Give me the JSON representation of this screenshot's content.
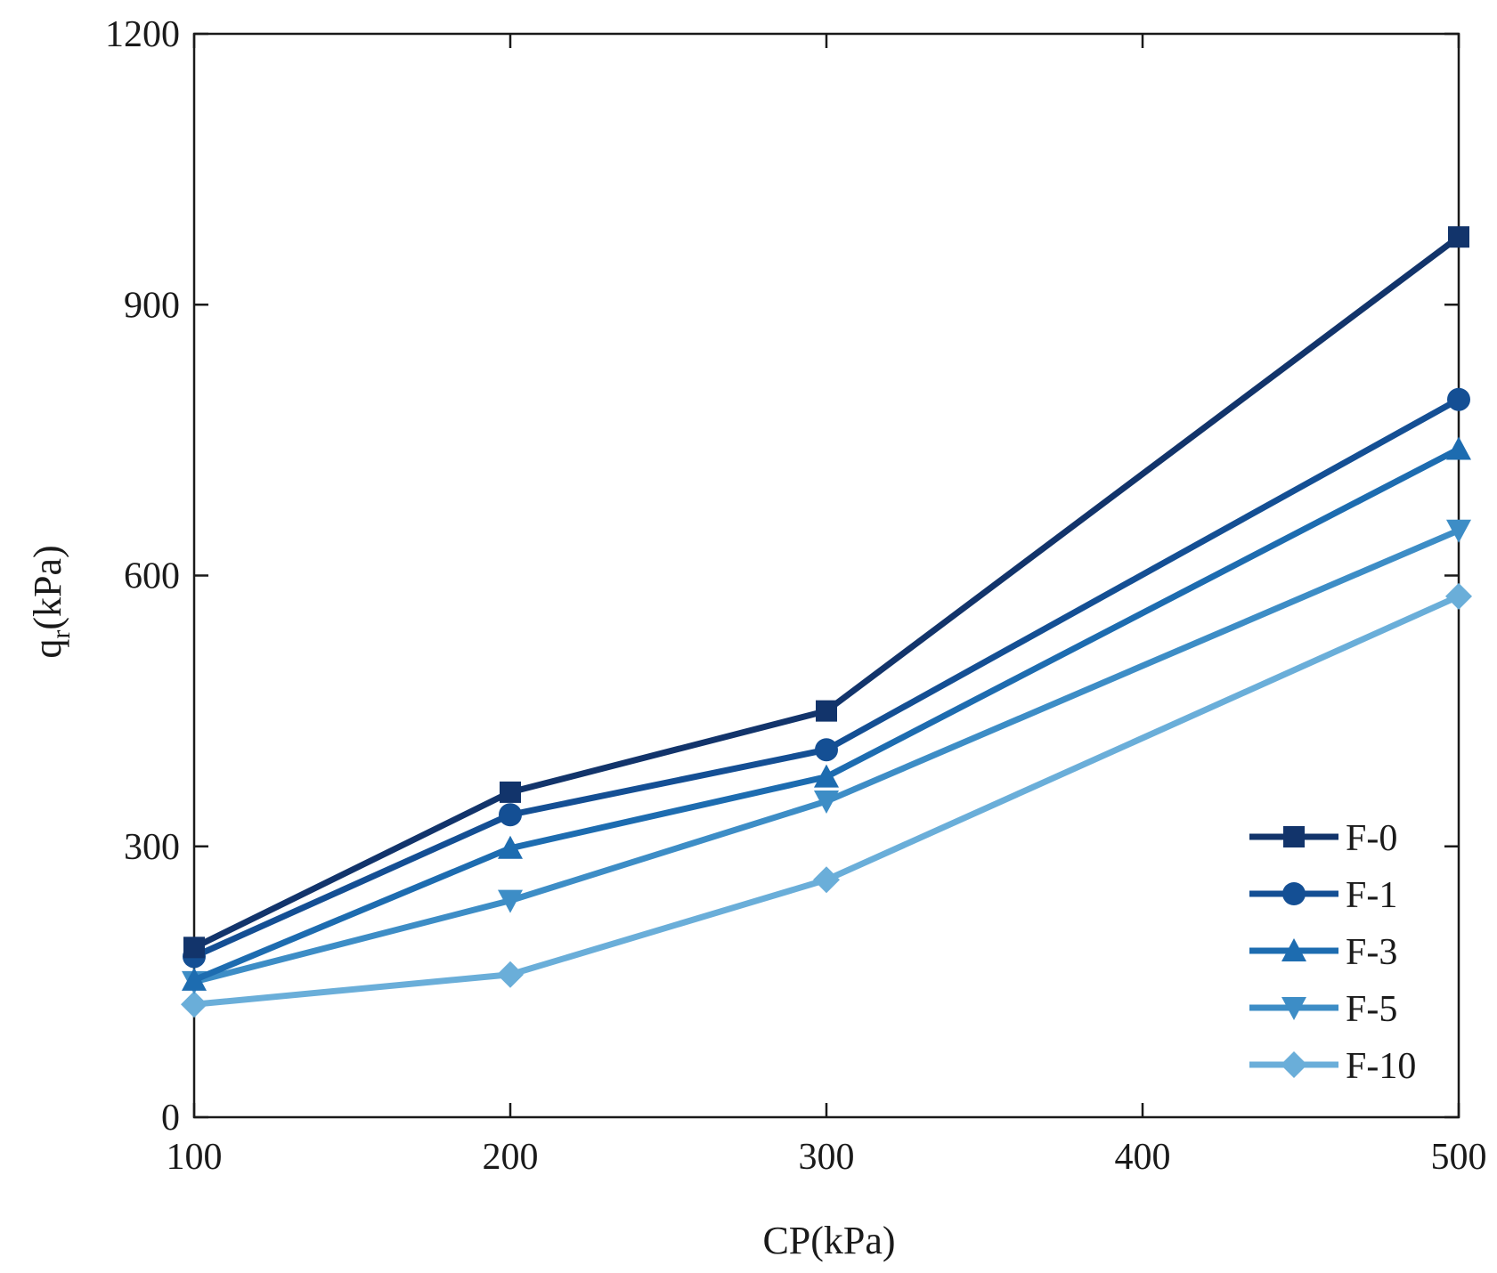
{
  "chart_data": {
    "type": "line",
    "title": "",
    "xlabel": "CP(kPa)",
    "ylabel": {
      "main": "q",
      "sub": "r",
      "unit": "(kPa)"
    },
    "x": [
      100,
      200,
      300,
      500
    ],
    "xlim": [
      100,
      500
    ],
    "ylim": [
      0,
      1200
    ],
    "xticks": [
      100,
      200,
      300,
      400,
      500
    ],
    "yticks": [
      0,
      300,
      600,
      900,
      1200
    ],
    "grid": false,
    "legend_position": "bottom-right",
    "series": [
      {
        "name": "F-0",
        "marker": "square",
        "color": "#12346b",
        "values": [
          188,
          360,
          450,
          975
        ]
      },
      {
        "name": "F-1",
        "marker": "circle",
        "color": "#144f94",
        "values": [
          178,
          335,
          407,
          795
        ]
      },
      {
        "name": "F-3",
        "marker": "triangle-up",
        "color": "#1d6cb0",
        "values": [
          152,
          298,
          377,
          740
        ]
      },
      {
        "name": "F-5",
        "marker": "triangle-down",
        "color": "#3d8dc6",
        "values": [
          150,
          240,
          350,
          650
        ]
      },
      {
        "name": "F-10",
        "marker": "diamond",
        "color": "#6aaed9",
        "values": [
          125,
          158,
          263,
          577
        ]
      }
    ]
  }
}
